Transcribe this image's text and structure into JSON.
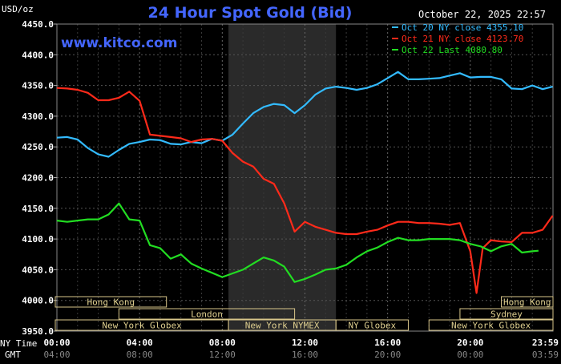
{
  "chart_data": {
    "type": "line",
    "title": "24 Hour Spot Gold (Bid)",
    "watermark": "www.kitco.com",
    "date_stamp": "October 22, 2025 22:57",
    "ylabel": "USD/oz",
    "ylim": [
      3950,
      4450
    ],
    "ytick_labels": [
      "4450.0",
      "4400.0",
      "4350.0",
      "4300.0",
      "4250.0",
      "4200.0",
      "4150.0",
      "4100.0",
      "4050.0",
      "4000.0",
      "3950.0"
    ],
    "ytick_values": [
      4450,
      4400,
      4350,
      4300,
      4250,
      4200,
      4150,
      4100,
      4050,
      4000,
      3950
    ],
    "xlim": [
      0,
      24
    ],
    "xtick_hours": [
      0,
      4,
      8,
      12,
      16,
      20,
      23.983
    ],
    "ny_time_label": "NY Time",
    "gmt_label": "GMT",
    "ny_ticks": [
      "00:00",
      "04:00",
      "08:00",
      "12:00",
      "16:00",
      "20:00",
      "23:59"
    ],
    "gmt_ticks": [
      "04:00",
      "08:00",
      "12:00",
      "16:00",
      "20:00",
      "00:00",
      "03:59"
    ],
    "shaded_hours": [
      8.3,
      13.5
    ],
    "grid": true,
    "legend_position": "top-right",
    "series": [
      {
        "name": "Oct 20 NY close 4355.10",
        "color": "#33bbff",
        "x": [
          0,
          0.5,
          1,
          1.5,
          2,
          2.5,
          3,
          3.5,
          4,
          4.5,
          5,
          5.5,
          6,
          6.5,
          7,
          7.5,
          8,
          8.5,
          9,
          9.5,
          10,
          10.5,
          11,
          11.5,
          12,
          12.5,
          13,
          13.5,
          14,
          14.5,
          15,
          15.5,
          16,
          16.5,
          17,
          17.5,
          18,
          18.5,
          19,
          19.5,
          20,
          20.5,
          21,
          21.5,
          22,
          22.5,
          23,
          23.5,
          23.983
        ],
        "values": [
          4265,
          4266,
          4262,
          4248,
          4238,
          4234,
          4245,
          4255,
          4258,
          4262,
          4261,
          4255,
          4254,
          4258,
          4256,
          4263,
          4260,
          4270,
          4288,
          4305,
          4315,
          4320,
          4318,
          4305,
          4318,
          4335,
          4345,
          4348,
          4346,
          4343,
          4346,
          4352,
          4362,
          4372,
          4360,
          4360,
          4361,
          4362,
          4366,
          4370,
          4363,
          4364,
          4364,
          4360,
          4345,
          4344,
          4350,
          4344,
          4348
        ]
      },
      {
        "name": "Oct 21 NY close 4123.70",
        "color": "#ff2a1a",
        "x": [
          0,
          0.5,
          1,
          1.5,
          2,
          2.5,
          3,
          3.5,
          4,
          4.5,
          5,
          5.5,
          6,
          6.5,
          7,
          7.5,
          8,
          8.5,
          9,
          9.5,
          10,
          10.5,
          11,
          11.5,
          12,
          12.5,
          13,
          13.5,
          14,
          14.5,
          15,
          15.5,
          16,
          16.5,
          17,
          17.5,
          18,
          18.5,
          19,
          19.5,
          20,
          20.3,
          20.6,
          21,
          21.5,
          22,
          22.5,
          23,
          23.5,
          23.983
        ],
        "values": [
          4346,
          4345,
          4343,
          4338,
          4326,
          4326,
          4330,
          4340,
          4325,
          4270,
          4268,
          4266,
          4264,
          4258,
          4262,
          4263,
          4260,
          4240,
          4226,
          4218,
          4198,
          4190,
          4158,
          4112,
          4128,
          4120,
          4115,
          4110,
          4108,
          4108,
          4112,
          4115,
          4122,
          4128,
          4128,
          4126,
          4126,
          4125,
          4123,
          4126,
          4080,
          4012,
          4085,
          4098,
          4096,
          4095,
          4110,
          4110,
          4115,
          4138
        ]
      },
      {
        "name": "Oct 22 Last 4080.80",
        "color": "#22dd22",
        "x": [
          0,
          0.5,
          1,
          1.5,
          2,
          2.5,
          3,
          3.5,
          4,
          4.5,
          5,
          5.5,
          6,
          6.5,
          7,
          7.5,
          8,
          8.5,
          9,
          9.5,
          10,
          10.5,
          11,
          11.5,
          12,
          12.5,
          13,
          13.5,
          14,
          14.5,
          15,
          15.5,
          16,
          16.5,
          17,
          17.5,
          18,
          18.5,
          19,
          19.5,
          20,
          20.5,
          21,
          21.5,
          22,
          22.5,
          23,
          23.3
        ],
        "values": [
          4130,
          4128,
          4130,
          4132,
          4132,
          4140,
          4158,
          4132,
          4130,
          4090,
          4085,
          4068,
          4075,
          4060,
          4052,
          4045,
          4038,
          4044,
          4050,
          4060,
          4070,
          4065,
          4055,
          4030,
          4035,
          4042,
          4050,
          4052,
          4058,
          4070,
          4080,
          4086,
          4095,
          4102,
          4098,
          4098,
          4100,
          4100,
          4100,
          4098,
          4092,
          4088,
          4080,
          4088,
          4092,
          4078,
          4080,
          4081
        ]
      }
    ],
    "sessions": [
      {
        "label": "Hong Kong",
        "start": -0.5,
        "end": 5.3,
        "row": 0
      },
      {
        "label": "Hong Kong",
        "start": 21.5,
        "end": 24.5,
        "row": 0
      },
      {
        "label": "Sydney",
        "start": 19.5,
        "end": 24.0,
        "row": 1
      },
      {
        "label": "London",
        "start": 3.0,
        "end": 11.5,
        "row": 1
      },
      {
        "label": "New York Globex",
        "start": -0.5,
        "end": 8.3,
        "row": 2
      },
      {
        "label": "New York NYMEX",
        "start": 8.3,
        "end": 13.5,
        "row": 2
      },
      {
        "label": "NY Globex",
        "start": 13.5,
        "end": 17.0,
        "row": 2
      },
      {
        "label": "New York Globex",
        "start": 18.0,
        "end": 24.5,
        "row": 2
      }
    ]
  }
}
